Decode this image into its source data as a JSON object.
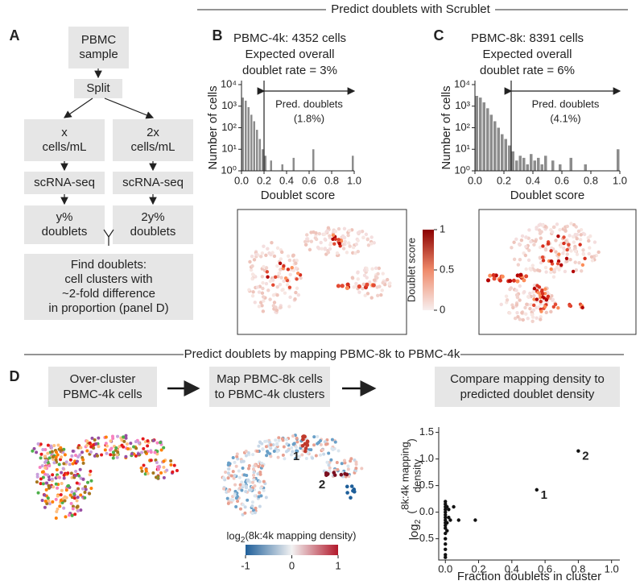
{
  "headers": [
    "Predict doublets with Scrublet",
    "Predict doublets by mapping PBMC-8k to PBMC-4k"
  ],
  "panel_labels": [
    "A",
    "B",
    "C",
    "D"
  ],
  "flowchart": {
    "boxes": [
      [
        "PBMC",
        "sample"
      ],
      [
        "Split"
      ],
      [
        "x",
        "cells/mL"
      ],
      [
        "2x",
        "cells/mL"
      ],
      [
        "scRNA-seq"
      ],
      [
        "scRNA-seq"
      ],
      [
        "y%",
        "doublets"
      ],
      [
        "2y%",
        "doublets"
      ],
      [
        "Find doublets:",
        "cell clusters with",
        "~2-fold difference",
        "in proportion (panel D)"
      ]
    ]
  },
  "steps": [
    [
      "Over-cluster",
      "PBMC-4k cells"
    ],
    [
      "Map PBMC-8k cells",
      "to PBMC-4k clusters"
    ],
    [
      "Compare mapping density to",
      "predicted doublet density"
    ]
  ],
  "map_labels": [
    "1",
    "2"
  ],
  "colorbars": [
    {
      "label": "Doublet score",
      "lim": [
        0,
        1
      ],
      "ticks": [
        0,
        0.5,
        1
      ]
    },
    {
      "label": [
        "log",
        "2",
        "(8k:4k mapping density)"
      ],
      "lim": [
        -1,
        1
      ],
      "ticks": [
        -1,
        0,
        1
      ]
    }
  ],
  "chart_data": [
    {
      "type": "histogram",
      "title": "PBMC-4k: 4352 cells",
      "subtitle": [
        "Expected overall",
        "doublet rate = 3%"
      ],
      "xlabel": "Doublet score",
      "ylabel": "Number of cells",
      "bins": [
        0,
        0.025,
        0.05,
        0.075,
        0.1,
        0.125,
        0.15,
        0.175,
        0.2,
        0.225,
        0.25,
        0.275,
        0.3,
        0.325,
        0.35,
        0.375,
        0.4,
        0.425,
        0.45,
        0.475,
        0.5,
        0.525,
        0.55,
        0.575,
        0.6,
        0.625,
        0.65,
        0.675,
        0.7,
        0.725,
        0.75,
        0.775,
        0.8,
        0.825,
        0.85,
        0.875,
        0.9,
        0.925,
        0.95,
        0.975,
        1
      ],
      "values": [
        2500,
        1800,
        900,
        400,
        200,
        80,
        30,
        10,
        5,
        0,
        3,
        0,
        0,
        0,
        2,
        0,
        0,
        0,
        4,
        0,
        0,
        0,
        0,
        0,
        0,
        10,
        0,
        0,
        0,
        0,
        0,
        0,
        0,
        0,
        0,
        0,
        0,
        0,
        0,
        5
      ],
      "color": "#8c8c8c",
      "log_y": true,
      "xlim": [
        0,
        1
      ],
      "ylim": [
        1,
        10000
      ],
      "xticks": [
        {
          "value": 0,
          "label": "0.0"
        },
        0.2,
        0.4,
        0.6,
        0.8,
        {
          "value": 1,
          "label": "1.0"
        }
      ],
      "yticks": [
        {
          "value": 1,
          "label": "10⁰"
        },
        {
          "value": 10,
          "label": "10¹"
        },
        {
          "value": 100,
          "label": "10²"
        },
        {
          "value": 1000,
          "label": "10³"
        },
        {
          "value": 10000,
          "label": "10⁴"
        }
      ],
      "threshold": 0.2,
      "annotation": [
        "Pred. doublets",
        "(1.8%)"
      ]
    },
    {
      "type": "histogram",
      "title": "PBMC-8k: 8391 cells",
      "subtitle": [
        "Expected overall",
        "doublet rate = 6%"
      ],
      "xlabel": "Doublet score",
      "ylabel": "Number of cells",
      "bins": [
        0,
        0.025,
        0.05,
        0.075,
        0.1,
        0.125,
        0.15,
        0.175,
        0.2,
        0.225,
        0.25,
        0.275,
        0.3,
        0.325,
        0.35,
        0.375,
        0.4,
        0.425,
        0.45,
        0.475,
        0.5,
        0.525,
        0.55,
        0.575,
        0.6,
        0.625,
        0.65,
        0.675,
        0.7,
        0.725,
        0.75,
        0.775,
        0.8,
        0.825,
        0.85,
        0.875,
        0.9,
        0.925,
        0.95,
        0.975,
        1
      ],
      "values": [
        3000,
        2500,
        1500,
        800,
        400,
        200,
        100,
        50,
        30,
        15,
        8,
        3,
        5,
        4,
        2,
        6,
        3,
        4,
        2,
        5,
        0,
        3,
        0,
        2,
        0,
        0,
        4,
        0,
        0,
        0,
        2,
        0,
        0,
        0,
        0,
        0,
        0,
        0,
        0,
        10
      ],
      "color": "#8c8c8c",
      "log_y": true,
      "xlim": [
        0,
        1
      ],
      "ylim": [
        1,
        10000
      ],
      "xticks": [
        {
          "value": 0,
          "label": "0.0"
        },
        0.2,
        0.4,
        0.6,
        0.8,
        {
          "value": 1,
          "label": "1.0"
        }
      ],
      "yticks": [
        {
          "value": 1,
          "label": "10⁰"
        },
        {
          "value": 10,
          "label": "10¹"
        },
        {
          "value": 100,
          "label": "10²"
        },
        {
          "value": 1000,
          "label": "10³"
        },
        {
          "value": 10000,
          "label": "10⁴"
        }
      ],
      "threshold": 0.25,
      "annotation": [
        "Pred. doublets",
        "(4.1%)"
      ]
    },
    {
      "type": "scatter",
      "xlabel": "Fraction doublets in cluster",
      "ylabel": [
        "log",
        "2",
        "(",
        "8k:4k mapping",
        "density",
        ")"
      ],
      "x": [
        0.55,
        0.8,
        0,
        0,
        0,
        0,
        0,
        0,
        0,
        0,
        0,
        0,
        0,
        0,
        0,
        0,
        0,
        0,
        0.01,
        0.01,
        0.02,
        0.02,
        0.03,
        0.05,
        0.08,
        0.18,
        0.01,
        0
      ],
      "values": [
        0.42,
        1.15,
        0.2,
        0.15,
        0.1,
        0.05,
        0,
        -0.05,
        -0.1,
        -0.15,
        -0.2,
        -0.25,
        -0.3,
        -0.4,
        -0.5,
        -0.6,
        -0.8,
        -0.85,
        0.1,
        -0.2,
        0.05,
        -0.1,
        -0.15,
        0.1,
        -0.15,
        -0.15,
        -0.35,
        -0.7
      ],
      "annotations": [
        "1",
        "2"
      ],
      "color": "#111111",
      "xlim": [
        -0.04,
        1.05
      ],
      "ylim": [
        -0.9,
        1.6
      ],
      "xticks": [
        {
          "value": 0,
          "label": "0.0"
        },
        0.2,
        0.4,
        0.6,
        0.8,
        {
          "value": 1,
          "label": "1.0"
        }
      ],
      "yticks": [
        -0.5,
        {
          "value": 0,
          "label": "0.0"
        },
        0.5,
        {
          "value": 1,
          "label": "1.0"
        },
        1.5
      ]
    }
  ]
}
